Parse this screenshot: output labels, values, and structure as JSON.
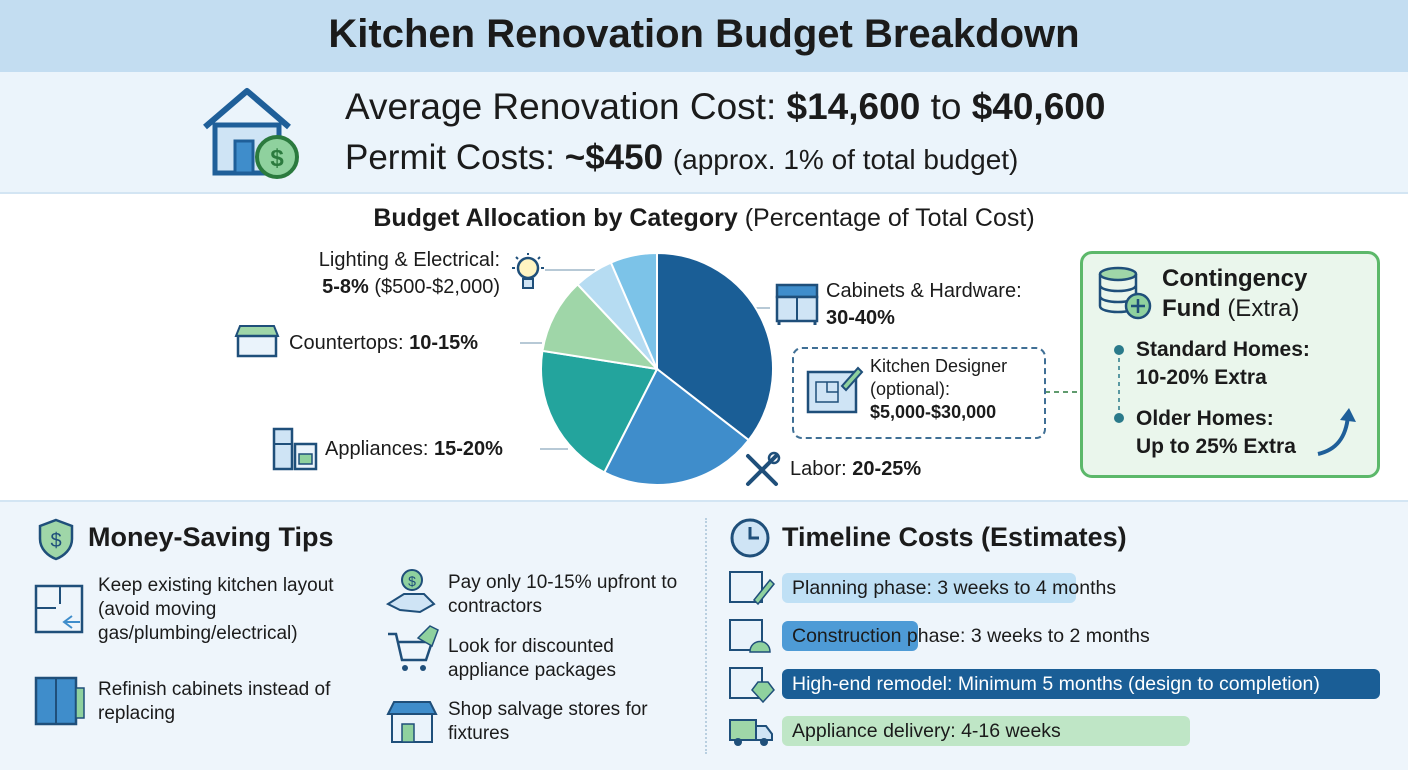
{
  "header": {
    "title": "Kitchen Renovation Budget Breakdown"
  },
  "summary": {
    "cost_label": "Average Renovation Cost:",
    "cost_low": "$14,600",
    "cost_to": "to",
    "cost_high": "$40,600",
    "permit_label": "Permit Costs:",
    "permit_value": "~$450",
    "permit_note": "(approx. 1% of total budget)"
  },
  "allocation": {
    "title": "Budget Allocation by Category",
    "subtitle": "(Percentage of Total Cost)",
    "slices": [
      {
        "name": "Cabinets & Hardware:",
        "range": "30-40%",
        "value": 35.5,
        "color": "#1a5e96"
      },
      {
        "name": "Labor:",
        "range": "20-25%",
        "value": 22,
        "color": "#3f8dcb"
      },
      {
        "name": "Appliances:",
        "range": "15-20%",
        "value": 20,
        "color": "#23a49d"
      },
      {
        "name": "Countertops:",
        "range": "10-15%",
        "value": 10.5,
        "color": "#9fd6a8"
      },
      {
        "name": "Lighting & Electrical:",
        "range": "5-8%",
        "detail": "($500-$2,000)",
        "value": 5.5,
        "color": "#b6dcf2"
      },
      {
        "name": null,
        "value": 6.5,
        "color": "#7cc3e8"
      }
    ],
    "designer": {
      "label": "Kitchen Designer (optional):",
      "cost": "$5,000-$30,000"
    }
  },
  "contingency": {
    "title": "Contingency Fund",
    "note": "(Extra)",
    "items": [
      {
        "label": "Standard Homes:",
        "value": "10-20% Extra"
      },
      {
        "label": "Older Homes:",
        "value": "Up to 25% Extra"
      }
    ]
  },
  "tips": {
    "title": "Money-Saving Tips",
    "items": [
      "Keep existing kitchen layout (avoid moving gas/plumbing/electrical)",
      "Refinish cabinets instead of replacing",
      "Pay only 10-15% upfront to contractors",
      "Look for discounted appliance packages",
      "Shop salvage stores for fixtures"
    ]
  },
  "timeline": {
    "title": "Timeline Costs (Estimates)",
    "items": [
      "Planning phase: 3 weeks to 4 months",
      "Construction phase: 3 weeks to 2 months",
      "High-end remodel: Minimum 5 months (design to completion)",
      "Appliance delivery: 4-16 weeks"
    ]
  }
}
